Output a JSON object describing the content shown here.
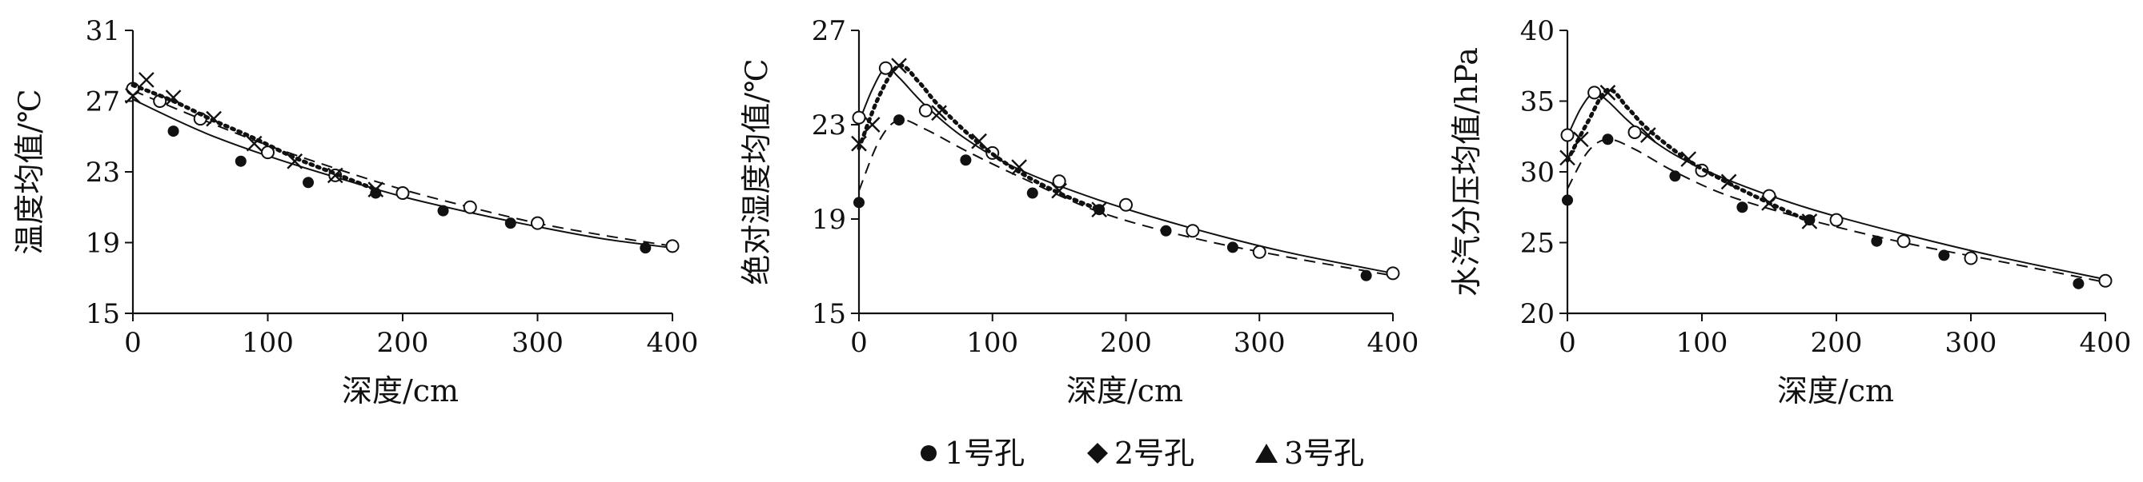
{
  "legend": [
    {
      "marker": "circle-filled",
      "label": "1号孔"
    },
    {
      "marker": "diamond-filled",
      "label": "2号孔"
    },
    {
      "marker": "triangle-filled",
      "label": "3号孔"
    }
  ],
  "chart_data": [
    {
      "type": "scatter",
      "xlabel": "深度/cm",
      "ylabel": "温度均值/℃",
      "xlim": [
        0,
        400
      ],
      "ylim": [
        15,
        31
      ],
      "xticks": [
        "0",
        "100",
        "200",
        "300",
        "400"
      ],
      "yticks": [
        "15",
        "19",
        "23",
        "27",
        "31"
      ],
      "series": [
        {
          "marker": "filled-circle",
          "line": "solid",
          "x": [
            0,
            30,
            80,
            130,
            180,
            230,
            280,
            380
          ],
          "y": [
            27.7,
            25.3,
            23.6,
            22.4,
            21.8,
            20.8,
            20.1,
            18.7
          ],
          "fit": {
            "x": [
              0,
              30,
              60,
              100,
              150,
              200,
              250,
              300,
              350,
              400
            ],
            "y": [
              27.1,
              26.0,
              25.0,
              23.9,
              22.7,
              21.6,
              20.7,
              19.9,
              19.2,
              18.7
            ]
          }
        },
        {
          "marker": "open-circle",
          "line": "dashed",
          "x": [
            0,
            20,
            50,
            100,
            150,
            200,
            250,
            300,
            400
          ],
          "y": [
            27.7,
            27.0,
            26.0,
            24.1,
            22.8,
            21.8,
            21.0,
            20.1,
            18.8
          ],
          "fit": {
            "x": [
              0,
              50,
              100,
              150,
              200,
              250,
              300,
              350,
              400
            ],
            "y": [
              27.6,
              26.0,
              24.5,
              23.2,
              22.0,
              21.0,
              20.1,
              19.4,
              18.8
            ]
          }
        },
        {
          "marker": "x",
          "line": "dotted",
          "x": [
            0,
            10,
            30,
            60,
            90,
            120,
            150,
            180
          ],
          "y": [
            27.3,
            28.2,
            27.2,
            26.0,
            24.6,
            23.6,
            22.8,
            22.0
          ],
          "fit": {
            "x": [
              0,
              30,
              60,
              90,
              120,
              150,
              180
            ],
            "y": [
              27.9,
              27.0,
              25.9,
              24.9,
              23.8,
              22.9,
              22.0
            ]
          }
        }
      ]
    },
    {
      "type": "scatter",
      "xlabel": "深度/cm",
      "ylabel": "绝对湿度均值/℃",
      "xlim": [
        0,
        400
      ],
      "ylim": [
        15,
        27
      ],
      "xticks": [
        "0",
        "100",
        "200",
        "300",
        "400"
      ],
      "yticks": [
        "15",
        "19",
        "23",
        "27"
      ],
      "series": [
        {
          "marker": "filled-circle",
          "line": "dashed",
          "x": [
            0,
            30,
            80,
            130,
            180,
            230,
            280,
            380
          ],
          "y": [
            19.7,
            23.2,
            21.5,
            20.1,
            19.4,
            18.5,
            17.8,
            16.6
          ],
          "fit": {
            "x": [
              0,
              15,
              30,
              50,
              80,
              120,
              180,
              250,
              320,
              400
            ],
            "y": [
              20.2,
              22.3,
              23.2,
              22.8,
              21.9,
              20.8,
              19.3,
              18.2,
              17.4,
              16.6
            ]
          }
        },
        {
          "marker": "open-circle",
          "line": "solid",
          "x": [
            0,
            20,
            50,
            100,
            150,
            200,
            250,
            300,
            400
          ],
          "y": [
            23.3,
            25.4,
            23.6,
            21.8,
            20.6,
            19.6,
            18.5,
            17.6,
            16.7
          ],
          "fit": {
            "x": [
              0,
              10,
              20,
              30,
              50,
              80,
              120,
              180,
              250,
              320,
              400
            ],
            "y": [
              23.1,
              24.5,
              25.4,
              25.0,
              23.8,
              22.4,
              21.1,
              19.8,
              18.6,
              17.6,
              16.7
            ]
          }
        },
        {
          "marker": "x",
          "line": "dotted",
          "x": [
            0,
            10,
            30,
            60,
            90,
            120,
            150,
            180
          ],
          "y": [
            22.2,
            23.0,
            25.5,
            23.5,
            22.3,
            21.2,
            20.2,
            19.4
          ],
          "fit": {
            "x": [
              0,
              15,
              30,
              45,
              60,
              90,
              120,
              150,
              180
            ],
            "y": [
              22.0,
              24.2,
              25.5,
              24.8,
              23.8,
              22.2,
              21.0,
              20.1,
              19.4
            ]
          }
        }
      ]
    },
    {
      "type": "scatter",
      "xlabel": "深度/cm",
      "ylabel": "水汽分压均值/hPa",
      "xlim": [
        0,
        400
      ],
      "ylim": [
        20,
        40
      ],
      "xticks": [
        "0",
        "100",
        "200",
        "300",
        "400"
      ],
      "yticks": [
        "20",
        "25",
        "30",
        "35",
        "40"
      ],
      "series": [
        {
          "marker": "filled-circle",
          "line": "dashed",
          "x": [
            0,
            30,
            80,
            130,
            180,
            230,
            280,
            380
          ],
          "y": [
            28.0,
            32.3,
            29.7,
            27.5,
            26.6,
            25.1,
            24.1,
            22.1
          ],
          "fit": {
            "x": [
              0,
              15,
              30,
              50,
              80,
              120,
              180,
              250,
              320,
              400
            ],
            "y": [
              28.8,
              31.4,
              32.3,
              31.6,
              30.0,
              28.3,
              26.6,
              25.0,
              23.7,
              22.2
            ]
          }
        },
        {
          "marker": "open-circle",
          "line": "solid",
          "x": [
            0,
            20,
            50,
            100,
            150,
            200,
            250,
            300,
            400
          ],
          "y": [
            32.6,
            35.6,
            32.8,
            30.1,
            28.3,
            26.6,
            25.1,
            23.9,
            22.3
          ],
          "fit": {
            "x": [
              0,
              10,
              20,
              30,
              50,
              80,
              120,
              180,
              250,
              320,
              400
            ],
            "y": [
              32.5,
              34.5,
              35.6,
              35.0,
              33.2,
              31.2,
              29.4,
              27.4,
              25.6,
              24.0,
              22.4
            ]
          }
        },
        {
          "marker": "x",
          "line": "dotted",
          "x": [
            0,
            10,
            30,
            60,
            90,
            120,
            150,
            180
          ],
          "y": [
            31.0,
            32.3,
            35.6,
            32.6,
            30.9,
            29.3,
            27.8,
            26.5
          ],
          "fit": {
            "x": [
              0,
              15,
              30,
              45,
              60,
              90,
              120,
              150,
              180
            ],
            "y": [
              30.8,
              33.5,
              35.8,
              34.5,
              33.0,
              30.8,
              29.2,
              27.8,
              26.5
            ]
          }
        }
      ]
    }
  ]
}
